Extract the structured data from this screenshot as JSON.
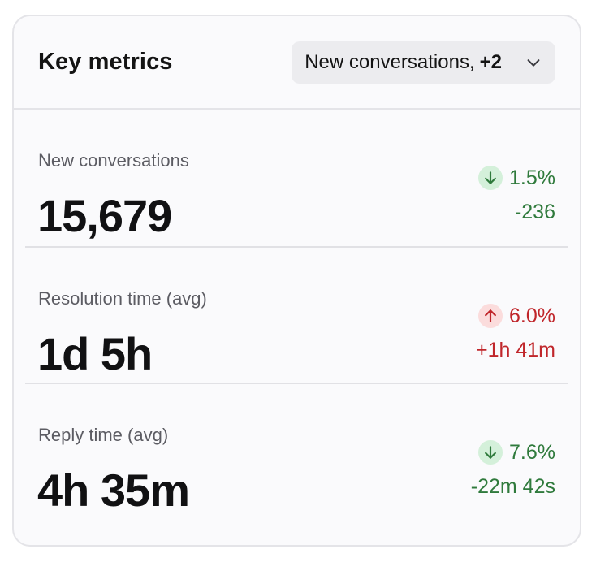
{
  "header": {
    "title": "Key metrics",
    "select_label": "New conversations,",
    "select_extra": "+2"
  },
  "metrics": [
    {
      "label": "New conversations",
      "value": "15,679",
      "delta_percent": "1.5%",
      "delta_abs": "-236",
      "direction": "down",
      "status_color": "#2f7a3c",
      "icon": "arrow-down-icon"
    },
    {
      "label": "Resolution time (avg)",
      "value": "1d 5h",
      "delta_percent": "6.0%",
      "delta_abs": "+1h 41m",
      "direction": "up",
      "status_color": "#c0262b",
      "icon": "arrow-up-icon"
    },
    {
      "label": "Reply time (avg)",
      "value": "4h 35m",
      "delta_percent": "7.6%",
      "delta_abs": "-22m 42s",
      "direction": "down",
      "status_color": "#2f7a3c",
      "icon": "arrow-down-icon"
    }
  ]
}
